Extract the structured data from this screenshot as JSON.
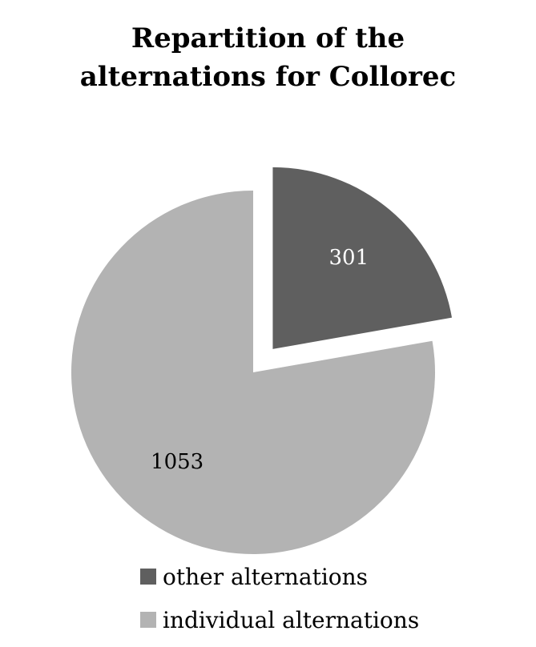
{
  "chart_data": {
    "type": "pie",
    "title_lines": [
      "Repartition of the",
      "alternations for Collorec"
    ],
    "slices": [
      {
        "label": "other alternations",
        "value": 301,
        "color": "#5f5f5f",
        "label_color": "#ffffff",
        "exploded": true
      },
      {
        "label": "individual alternations",
        "value": 1053,
        "color": "#b3b3b3",
        "label_color": "#000000",
        "exploded": false
      }
    ],
    "legend_position": "bottom"
  }
}
